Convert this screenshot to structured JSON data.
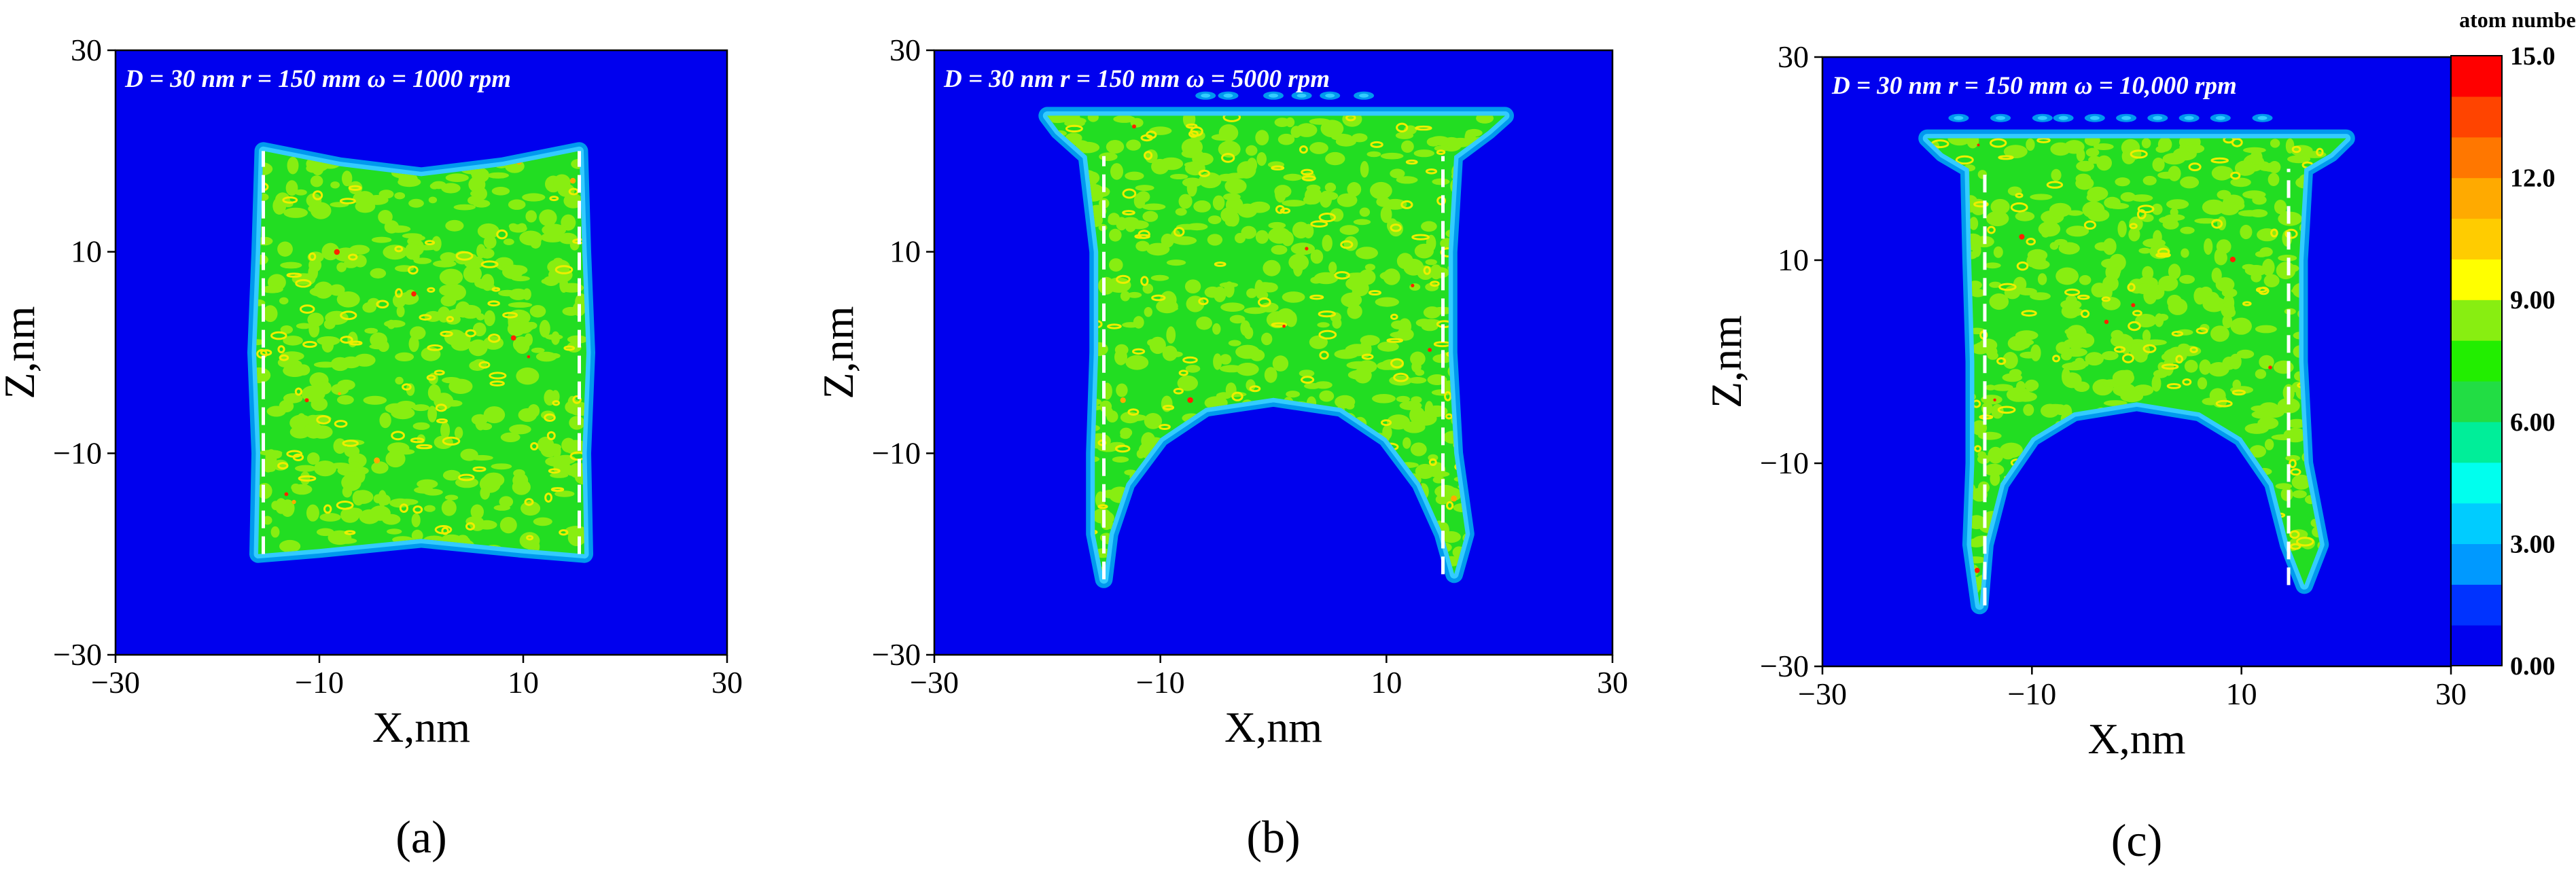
{
  "figure": {
    "colors": {
      "background": "#0000ee",
      "halo_outer": "#0099ee",
      "halo_inner": "#33ccff",
      "fill_main": "#22dd22",
      "fill_light": "#88ee11",
      "fill_yellow": "#eeee00",
      "fill_orange": "#ffaa00",
      "fill_red": "#ff2200",
      "dashed_line": "#ffffff",
      "frame": "#000000"
    }
  },
  "chart_data": [
    {
      "type": "heatmap",
      "panel_label": "(a)",
      "annotation": "D = 30 nm   r = 150 mm   ω = 1000 rpm",
      "xlabel": "X,nm",
      "ylabel": "Z,nm",
      "xlim": [
        -30,
        30
      ],
      "ylim": [
        -30,
        30
      ],
      "xticks": [
        -30,
        -10,
        10,
        30
      ],
      "yticks": [
        -30,
        -10,
        10,
        30
      ],
      "xtick_labels": [
        "−30",
        "−10",
        "10",
        "30"
      ],
      "ytick_labels": [
        "−30",
        "−10",
        "10",
        "30"
      ],
      "region_outline": [
        [
          -15.5,
          20
        ],
        [
          -8,
          18.5
        ],
        [
          0,
          17.5
        ],
        [
          8,
          18.5
        ],
        [
          15.5,
          20
        ],
        [
          15.8,
          10
        ],
        [
          16.2,
          0
        ],
        [
          15.8,
          -10
        ],
        [
          16,
          -20
        ],
        [
          10,
          -19.5
        ],
        [
          0,
          -18.5
        ],
        [
          -10,
          -19.5
        ],
        [
          -16,
          -20
        ],
        [
          -15.8,
          -10
        ],
        [
          -16.2,
          0
        ],
        [
          -15.8,
          10
        ]
      ],
      "dashed_lines": [
        {
          "x": -15.5,
          "z_from": -20,
          "z_to": 20
        },
        {
          "x": 15.5,
          "z_from": -20,
          "z_to": 20
        }
      ],
      "debris_x": [],
      "debris_z": 0
    },
    {
      "type": "heatmap",
      "panel_label": "(b)",
      "annotation": "D = 30 nm   r = 150 mm   ω = 5000 rpm",
      "xlabel": "X,nm",
      "ylabel": "Z,nm",
      "xlim": [
        -30,
        30
      ],
      "ylim": [
        -30,
        30
      ],
      "xticks": [
        -30,
        -10,
        10,
        30
      ],
      "yticks": [
        -30,
        -10,
        10,
        30
      ],
      "xtick_labels": [
        "−30",
        "−10",
        "10",
        "30"
      ],
      "ytick_labels": [
        "−30",
        "−10",
        "10",
        "30"
      ],
      "region_outline": [
        [
          -20,
          23.5
        ],
        [
          20.5,
          23.5
        ],
        [
          19,
          22
        ],
        [
          16,
          19.5
        ],
        [
          15.5,
          10
        ],
        [
          15.5,
          0
        ],
        [
          16,
          -10
        ],
        [
          17,
          -18
        ],
        [
          16,
          -22
        ],
        [
          15,
          -18
        ],
        [
          13,
          -13
        ],
        [
          10,
          -8.5
        ],
        [
          6,
          -5.5
        ],
        [
          0,
          -4.5
        ],
        [
          -6,
          -5.5
        ],
        [
          -10,
          -8.5
        ],
        [
          -13,
          -13
        ],
        [
          -14.5,
          -18
        ],
        [
          -15,
          -22.5
        ],
        [
          -15.8,
          -18
        ],
        [
          -15.8,
          -10
        ],
        [
          -15.5,
          0
        ],
        [
          -15.5,
          10
        ],
        [
          -16.5,
          19.5
        ],
        [
          -19,
          22
        ]
      ],
      "dashed_lines": [
        {
          "x": -15,
          "z_from": -22.5,
          "z_to": 19.5
        },
        {
          "x": 15,
          "z_from": -22,
          "z_to": 19.5
        }
      ],
      "debris_x": [
        -6,
        -4,
        0,
        2.5,
        5,
        8
      ],
      "debris_z": 25.5
    },
    {
      "type": "heatmap",
      "panel_label": "(c)",
      "annotation": "D = 30 nm   r = 150 mm   ω = 10,000 rpm",
      "xlabel": "X,nm",
      "ylabel": "Z,nm",
      "xlim": [
        -30,
        30
      ],
      "ylim": [
        -30,
        30
      ],
      "xticks": [
        -30,
        -10,
        10,
        30
      ],
      "yticks": [
        -30,
        -10,
        10,
        30
      ],
      "xtick_labels": [
        "−30",
        "−10",
        "10",
        "30"
      ],
      "ytick_labels": [
        "−30",
        "−10",
        "10",
        "30"
      ],
      "region_outline": [
        [
          -20,
          22
        ],
        [
          20,
          22
        ],
        [
          18.5,
          20.5
        ],
        [
          16,
          19
        ],
        [
          15.5,
          10
        ],
        [
          15.5,
          0
        ],
        [
          16,
          -10
        ],
        [
          17.5,
          -18
        ],
        [
          16,
          -22
        ],
        [
          14.5,
          -18
        ],
        [
          13,
          -12
        ],
        [
          10,
          -7.5
        ],
        [
          6,
          -5
        ],
        [
          0,
          -4
        ],
        [
          -6,
          -5
        ],
        [
          -10,
          -7.5
        ],
        [
          -13,
          -12
        ],
        [
          -14.5,
          -18
        ],
        [
          -15,
          -24
        ],
        [
          -15.8,
          -18
        ],
        [
          -15.5,
          -10
        ],
        [
          -15.5,
          0
        ],
        [
          -15.8,
          10
        ],
        [
          -16,
          19
        ],
        [
          -18.5,
          20.5
        ]
      ],
      "dashed_lines": [
        {
          "x": -14.5,
          "z_from": -24,
          "z_to": 19
        },
        {
          "x": 14.5,
          "z_from": -22,
          "z_to": 19
        }
      ],
      "debris_x": [
        -17,
        -13,
        -9,
        -7,
        -4,
        -1,
        2,
        5,
        8,
        12
      ],
      "debris_z": 24
    }
  ],
  "colorbar": {
    "title": "atom number",
    "range": [
      0,
      15
    ],
    "tick_labels": [
      "15.0",
      "12.0",
      "9.00",
      "6.00",
      "3.00",
      "0.00"
    ],
    "levels": [
      "#0000ee",
      "#0033ff",
      "#0099ff",
      "#00ccff",
      "#00ffee",
      "#00ee99",
      "#22dd44",
      "#22ee00",
      "#88ee11",
      "#ffff00",
      "#ffcc00",
      "#ffaa00",
      "#ff7700",
      "#ff4400",
      "#ff0000"
    ]
  }
}
